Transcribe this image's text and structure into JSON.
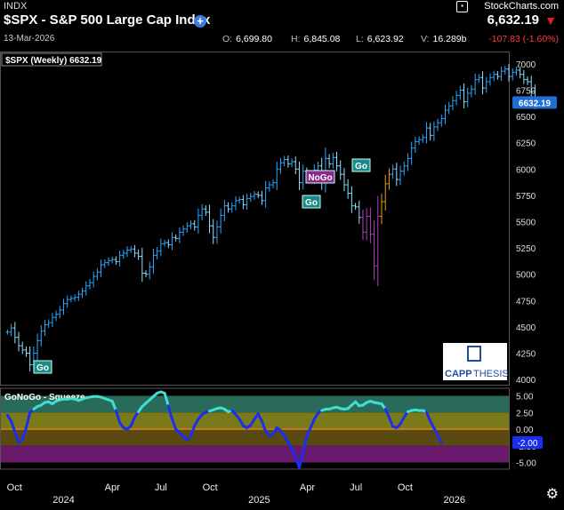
{
  "header": {
    "exchange": "INDX",
    "brand": "StockCharts.com",
    "symbol_title": "$SPX - S&P 500 Large Cap Index",
    "price": "6,632.19",
    "date": "13-Mar-2026",
    "open_label": "O:",
    "open": "6,699.80",
    "high_label": "H:",
    "high": "6,845.08",
    "low_label": "L:",
    "low": "6,623.92",
    "vol_label": "V:",
    "volume": "16.289b",
    "change": "-107.83 (-1.60%)",
    "icons": {
      "brand": "stockcharts-logo-icon",
      "add": "plus-circle-icon",
      "direction": "triangle-down-icon",
      "settings": "gear-icon"
    }
  },
  "colors": {
    "go_blue": "#2aa8ff",
    "go_lightblue": "#8fe0ff",
    "nogo_purple": "#b040c0",
    "nogo_pink": "#ff60ff",
    "amber": "#e0a020",
    "squeeze_cyan": "#40e0d0",
    "squeeze_blue": "#1a2ef0",
    "zero_line": "#e08020",
    "price_tag": "#1e6fd0"
  },
  "chart_data": [
    {
      "type": "ohlc",
      "title": "$SPX (Weekly) 6632.19",
      "last_value": "6632.19",
      "y_ticks": [
        "4000",
        "4250",
        "4500",
        "4750",
        "5000",
        "5250",
        "5500",
        "5750",
        "6000",
        "6250",
        "6500",
        "6750",
        "7000"
      ],
      "ylim": [
        3950,
        7100
      ],
      "x_ticks": [
        "Oct",
        "Apr",
        "Jul",
        "Oct",
        "Apr",
        "Jul",
        "Oct"
      ],
      "x_ticks_dates": [
        "2023-10-01",
        "2024-04-01",
        "2024-07-01",
        "2024-10-01",
        "2025-04-01",
        "2025-07-01",
        "2025-10-01"
      ],
      "year_labels": [
        "2024",
        "2025",
        "2026"
      ],
      "year_dates": [
        "2024-01-01",
        "2025-01-01",
        "2026-01-01"
      ],
      "xlim": [
        "2023-09-04",
        "2026-04-13"
      ],
      "closes_weekly": [
        4450,
        4490,
        4400,
        4320,
        4280,
        4250,
        4140,
        4250,
        4370,
        4460,
        4520,
        4540,
        4590,
        4620,
        4660,
        4720,
        4760,
        4770,
        4780,
        4810,
        4840,
        4890,
        4920,
        4980,
        5020,
        5090,
        5110,
        5130,
        5140,
        5120,
        5180,
        5200,
        5230,
        5240,
        5200,
        5170,
        5010,
        5000,
        5070,
        5180,
        5220,
        5290,
        5300,
        5280,
        5350,
        5340,
        5400,
        5430,
        5460,
        5480,
        5450,
        5560,
        5620,
        5590,
        5460,
        5350,
        5450,
        5560,
        5650,
        5620,
        5650,
        5700,
        5710,
        5660,
        5720,
        5740,
        5760,
        5750,
        5700,
        5820,
        5850,
        5870,
        6000,
        6060,
        6090,
        6050,
        6070,
        6000,
        5870,
        5980,
        5950,
        5910,
        5990,
        6030,
        5880,
        6100,
        6050,
        6110,
        6030,
        5950,
        5850,
        5770,
        5650,
        5640,
        5540,
        5400,
        5550,
        5380,
        5080,
        5550,
        5690,
        5860,
        5950,
        6000,
        5900,
        5980,
        6030,
        6100,
        6200,
        6260,
        6280,
        6300,
        6390,
        6320,
        6400,
        6440,
        6480,
        6560,
        6600,
        6650,
        6700,
        6750,
        6640,
        6720,
        6760,
        6850,
        6870,
        6770,
        6830,
        6870,
        6900,
        6880,
        6930,
        6950,
        6880,
        6920,
        6940,
        6900,
        6850,
        6830,
        6740,
        6632
      ],
      "signals": [
        {
          "label": "Go",
          "date": "2023-11-13"
        },
        {
          "label": "NoGo",
          "date": "2025-03-10"
        },
        {
          "label": "Go",
          "date": "2025-03-10"
        },
        {
          "label": "Go",
          "date": "2025-06-02"
        }
      ],
      "logo_text": {
        "a": "CAPP",
        "b": "THESIS"
      }
    },
    {
      "type": "line",
      "title": "GoNoGo - Squeeze",
      "y_ticks": [
        "5.00",
        "2.50",
        "0.00",
        "-2.50",
        "-5.00"
      ],
      "last_value": "-2.00",
      "ylim": [
        -6,
        6
      ],
      "bands": [
        {
          "from": 2.5,
          "to": 5,
          "color": "#2a6a5a"
        },
        {
          "from": 0,
          "to": 2.5,
          "color": "#7a7a1a"
        },
        {
          "from": -2.5,
          "to": 0,
          "color": "#5a4a12"
        },
        {
          "from": -5,
          "to": -2.5,
          "color": "#6a1a6a"
        }
      ],
      "values_weekly": [
        2.1,
        1.2,
        -0.4,
        -2.0,
        -1.5,
        0.2,
        2.5,
        3.0,
        3.4,
        3.6,
        4.0,
        4.1,
        3.8,
        4.2,
        4.4,
        4.5,
        4.5,
        4.6,
        4.5,
        4.3,
        4.5,
        4.7,
        4.8,
        4.9,
        4.9,
        4.8,
        4.6,
        4.4,
        4.2,
        2.8,
        1.0,
        0.2,
        0.0,
        0.5,
        1.8,
        2.6,
        3.4,
        3.9,
        4.4,
        4.9,
        5.4,
        5.6,
        5.4,
        3.5,
        1.5,
        0.0,
        -0.5,
        -1.2,
        -1.6,
        -1.0,
        0.5,
        1.5,
        2.2,
        2.5,
        2.7,
        2.9,
        3.1,
        3.2,
        3.0,
        2.6,
        2.8,
        2.2,
        1.5,
        0.5,
        0.2,
        0.6,
        1.5,
        2.3,
        1.2,
        -0.3,
        -1.0,
        -0.8,
        0.2,
        -0.2,
        -1.0,
        -2.0,
        -3.0,
        -4.2,
        -5.8,
        -3.5,
        -1.0,
        0.2,
        1.5,
        2.4,
        2.8,
        3.0,
        3.0,
        3.2,
        3.3,
        3.1,
        3.0,
        3.1,
        3.6,
        4.1,
        3.5,
        3.6,
        4.0,
        4.2,
        4.0,
        3.9,
        3.8,
        3.0,
        1.8,
        0.4,
        0.2,
        0.8,
        1.8,
        2.6,
        2.8,
        2.9,
        2.8,
        2.8,
        2.6,
        1.2,
        0.2,
        -1.0,
        -2.0
      ]
    }
  ]
}
